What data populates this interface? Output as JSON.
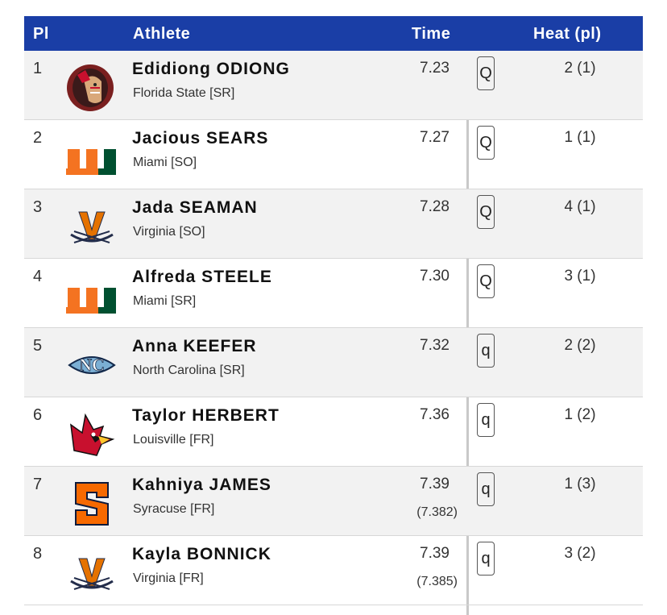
{
  "header": {
    "pl": "Pl",
    "athlete": "Athlete",
    "time": "Time",
    "heat": "Heat (pl)"
  },
  "colors": {
    "header_bg": "#1a3ea6",
    "shade_row": "#f2f2f2"
  },
  "rows": [
    {
      "pl": "1",
      "name": "Edidiong ODIONG",
      "team": "Florida State [SR]",
      "time": "7.23",
      "subtime": "",
      "q": "Q",
      "heat": "2 (1)",
      "logo": "florida-state-logo"
    },
    {
      "pl": "2",
      "name": "Jacious SEARS",
      "team": "Miami [SO]",
      "time": "7.27",
      "subtime": "",
      "q": "Q",
      "heat": "1 (1)",
      "logo": "miami-logo"
    },
    {
      "pl": "3",
      "name": "Jada SEAMAN",
      "team": "Virginia [SO]",
      "time": "7.28",
      "subtime": "",
      "q": "Q",
      "heat": "4 (1)",
      "logo": "virginia-logo"
    },
    {
      "pl": "4",
      "name": "Alfreda STEELE",
      "team": "Miami [SR]",
      "time": "7.30",
      "subtime": "",
      "q": "Q",
      "heat": "3 (1)",
      "logo": "miami-logo"
    },
    {
      "pl": "5",
      "name": "Anna KEEFER",
      "team": "North Carolina [SR]",
      "time": "7.32",
      "subtime": "",
      "q": "q",
      "heat": "2 (2)",
      "logo": "north-carolina-logo"
    },
    {
      "pl": "6",
      "name": "Taylor HERBERT",
      "team": "Louisville [FR]",
      "time": "7.36",
      "subtime": "",
      "q": "q",
      "heat": "1 (2)",
      "logo": "louisville-logo"
    },
    {
      "pl": "7",
      "name": "Kahniya JAMES",
      "team": "Syracuse [FR]",
      "time": "7.39",
      "subtime": "(7.382)",
      "q": "q",
      "heat": "1 (3)",
      "logo": "syracuse-logo"
    },
    {
      "pl": "8",
      "name": "Kayla BONNICK",
      "team": "Virginia [FR]",
      "time": "7.39",
      "subtime": "(7.385)",
      "q": "q",
      "heat": "3 (2)",
      "logo": "virginia-logo"
    }
  ]
}
